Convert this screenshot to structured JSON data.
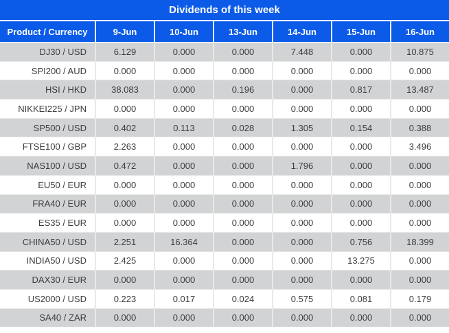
{
  "title": "Dividends of this week",
  "colors": {
    "header_blue": "#0b5be8",
    "header_text": "#ffffff",
    "row_gray": "#d2d3d5",
    "row_white": "#ffffff",
    "zero_value_text": "#3d3d3d",
    "nonzero_value_text": "#fa3e3e",
    "cell_separator": "#e9e9e9"
  },
  "chart_data": {
    "type": "table",
    "title": "Dividends of this week",
    "columns": [
      "Product / Currency",
      "9-Jun",
      "10-Jun",
      "13-Jun",
      "14-Jun",
      "15-Jun",
      "16-Jun"
    ],
    "highlight_rule": "non-zero dividend values are shown in red",
    "rows": [
      {
        "product": "DJ30 / USD",
        "values": [
          "6.129",
          "0.000",
          "0.000",
          "7.448",
          "0.000",
          "10.875"
        ]
      },
      {
        "product": "SPI200 / AUD",
        "values": [
          "0.000",
          "0.000",
          "0.000",
          "0.000",
          "0.000",
          "0.000"
        ]
      },
      {
        "product": "HSI / HKD",
        "values": [
          "38.083",
          "0.000",
          "0.196",
          "0.000",
          "0.817",
          "13.487"
        ]
      },
      {
        "product": "NIKKEI225 / JPN",
        "values": [
          "0.000",
          "0.000",
          "0.000",
          "0.000",
          "0.000",
          "0.000"
        ]
      },
      {
        "product": "SP500 / USD",
        "values": [
          "0.402",
          "0.113",
          "0.028",
          "1.305",
          "0.154",
          "0.388"
        ]
      },
      {
        "product": "FTSE100 / GBP",
        "values": [
          "2.263",
          "0.000",
          "0.000",
          "0.000",
          "0.000",
          "3.496"
        ]
      },
      {
        "product": "NAS100 / USD",
        "values": [
          "0.472",
          "0.000",
          "0.000",
          "1.796",
          "0.000",
          "0.000"
        ]
      },
      {
        "product": "EU50 / EUR",
        "values": [
          "0.000",
          "0.000",
          "0.000",
          "0.000",
          "0.000",
          "0.000"
        ]
      },
      {
        "product": "FRA40 / EUR",
        "values": [
          "0.000",
          "0.000",
          "0.000",
          "0.000",
          "0.000",
          "0.000"
        ]
      },
      {
        "product": "ES35 / EUR",
        "values": [
          "0.000",
          "0.000",
          "0.000",
          "0.000",
          "0.000",
          "0.000"
        ]
      },
      {
        "product": "CHINA50 / USD",
        "values": [
          "2.251",
          "16.364",
          "0.000",
          "0.000",
          "0.756",
          "18.399"
        ]
      },
      {
        "product": "INDIA50 / USD",
        "values": [
          "2.425",
          "0.000",
          "0.000",
          "0.000",
          "13.275",
          "0.000"
        ]
      },
      {
        "product": "DAX30 / EUR",
        "values": [
          "0.000",
          "0.000",
          "0.000",
          "0.000",
          "0.000",
          "0.000"
        ]
      },
      {
        "product": "US2000 / USD",
        "values": [
          "0.223",
          "0.017",
          "0.024",
          "0.575",
          "0.081",
          "0.179"
        ]
      },
      {
        "product": "SA40 / ZAR",
        "values": [
          "0.000",
          "0.000",
          "0.000",
          "0.000",
          "0.000",
          "0.000"
        ]
      }
    ]
  }
}
